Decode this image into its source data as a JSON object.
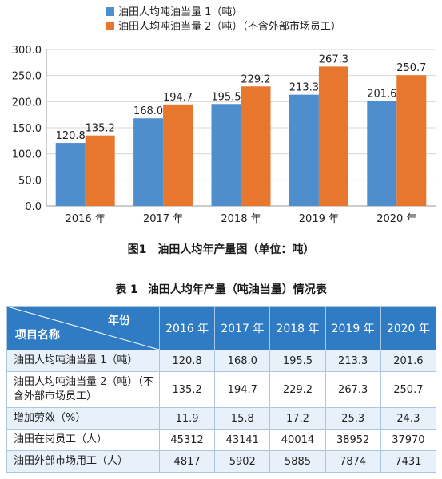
{
  "chart_data": {
    "type": "bar",
    "categories": [
      "2016 年",
      "2017 年",
      "2018 年",
      "2019 年",
      "2020 年"
    ],
    "series": [
      {
        "name": "油田人均吨油当量 1（吨）",
        "values": [
          120.8,
          168.0,
          195.5,
          213.3,
          201.6
        ],
        "color": "#4e8ecd"
      },
      {
        "name": "油田人均吨油当量 2（吨）（不含外部市场员工）",
        "values": [
          135.2,
          194.7,
          229.2,
          267.3,
          250.7
        ],
        "color": "#e8772e"
      }
    ],
    "ylim": [
      0,
      300
    ],
    "yticks": [
      "0.0",
      "50.0",
      "100.0",
      "150.0",
      "200.0",
      "250.0",
      "300.0"
    ],
    "value_labels": [
      [
        "120.8",
        "168.0",
        "195.5",
        "213.3",
        "201.6"
      ],
      [
        "135.2",
        "194.7",
        "229.2",
        "267.3",
        "250.7"
      ]
    ],
    "grid": true,
    "legend_position": "top-left"
  },
  "figure": {
    "number": "图1",
    "caption": "油田人均年产量图（单位：吨）"
  },
  "table": {
    "number": "表 1",
    "caption": "油田人均年产量（吨油当量）情况表",
    "corner_top": "年份",
    "corner_bottom": "项目名称",
    "years": [
      "2016 年",
      "2017 年",
      "2018 年",
      "2019 年",
      "2020 年"
    ],
    "rows": [
      {
        "name": "油田人均吨油当量 1（吨）",
        "values": [
          "120.8",
          "168.0",
          "195.5",
          "213.3",
          "201.6"
        ]
      },
      {
        "name": "油田人均吨油当量 2（吨）（不含外部市场员工）",
        "values": [
          "135.2",
          "194.7",
          "229.2",
          "267.3",
          "250.7"
        ]
      },
      {
        "name": "增加劳效（%）",
        "values": [
          "11.9",
          "15.8",
          "17.2",
          "25.3",
          "24.3"
        ]
      },
      {
        "name": "油田在岗员工（人）",
        "values": [
          "45312",
          "43141",
          "40014",
          "38952",
          "37970"
        ]
      },
      {
        "name": "油田外部市场用工（人）",
        "values": [
          "4817",
          "5902",
          "5885",
          "7874",
          "7431"
        ]
      }
    ]
  }
}
